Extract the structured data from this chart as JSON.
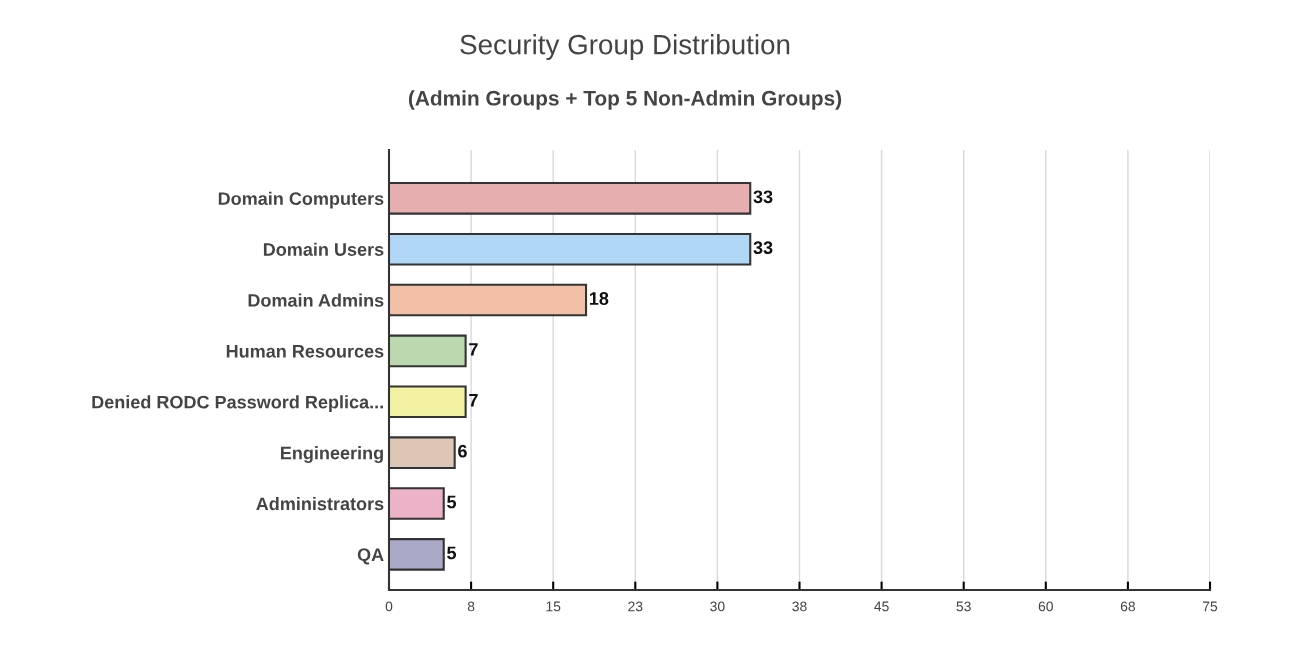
{
  "chart_data": {
    "type": "bar",
    "orientation": "horizontal",
    "title": "Security Group Distribution",
    "subtitle": "(Admin Groups + Top 5 Non-Admin Groups)",
    "categories": [
      "Domain Computers",
      "Domain Users",
      "Domain Admins",
      "Human Resources",
      "Denied RODC Password Replica...",
      "Engineering",
      "Administrators",
      "QA"
    ],
    "values": [
      33,
      33,
      18,
      7,
      7,
      6,
      5,
      5
    ],
    "colors": [
      "#e6aeae",
      "#b0d8f6",
      "#f2c0a6",
      "#bcd8ae",
      "#f2f2a2",
      "#dcc6b6",
      "#ecb2c8",
      "#aaaac8"
    ],
    "xlim": [
      0,
      75
    ],
    "xticks": [
      0,
      {
        "value": 7.5,
        "label": "8"
      },
      15,
      {
        "value": 22.5,
        "label": "23"
      },
      30,
      {
        "value": 37.5,
        "label": "38"
      },
      45,
      {
        "value": 52.5,
        "label": "53"
      },
      60,
      {
        "value": 67.5,
        "label": "68"
      },
      75
    ],
    "grid": "x",
    "data_labels": true,
    "legend": false
  }
}
